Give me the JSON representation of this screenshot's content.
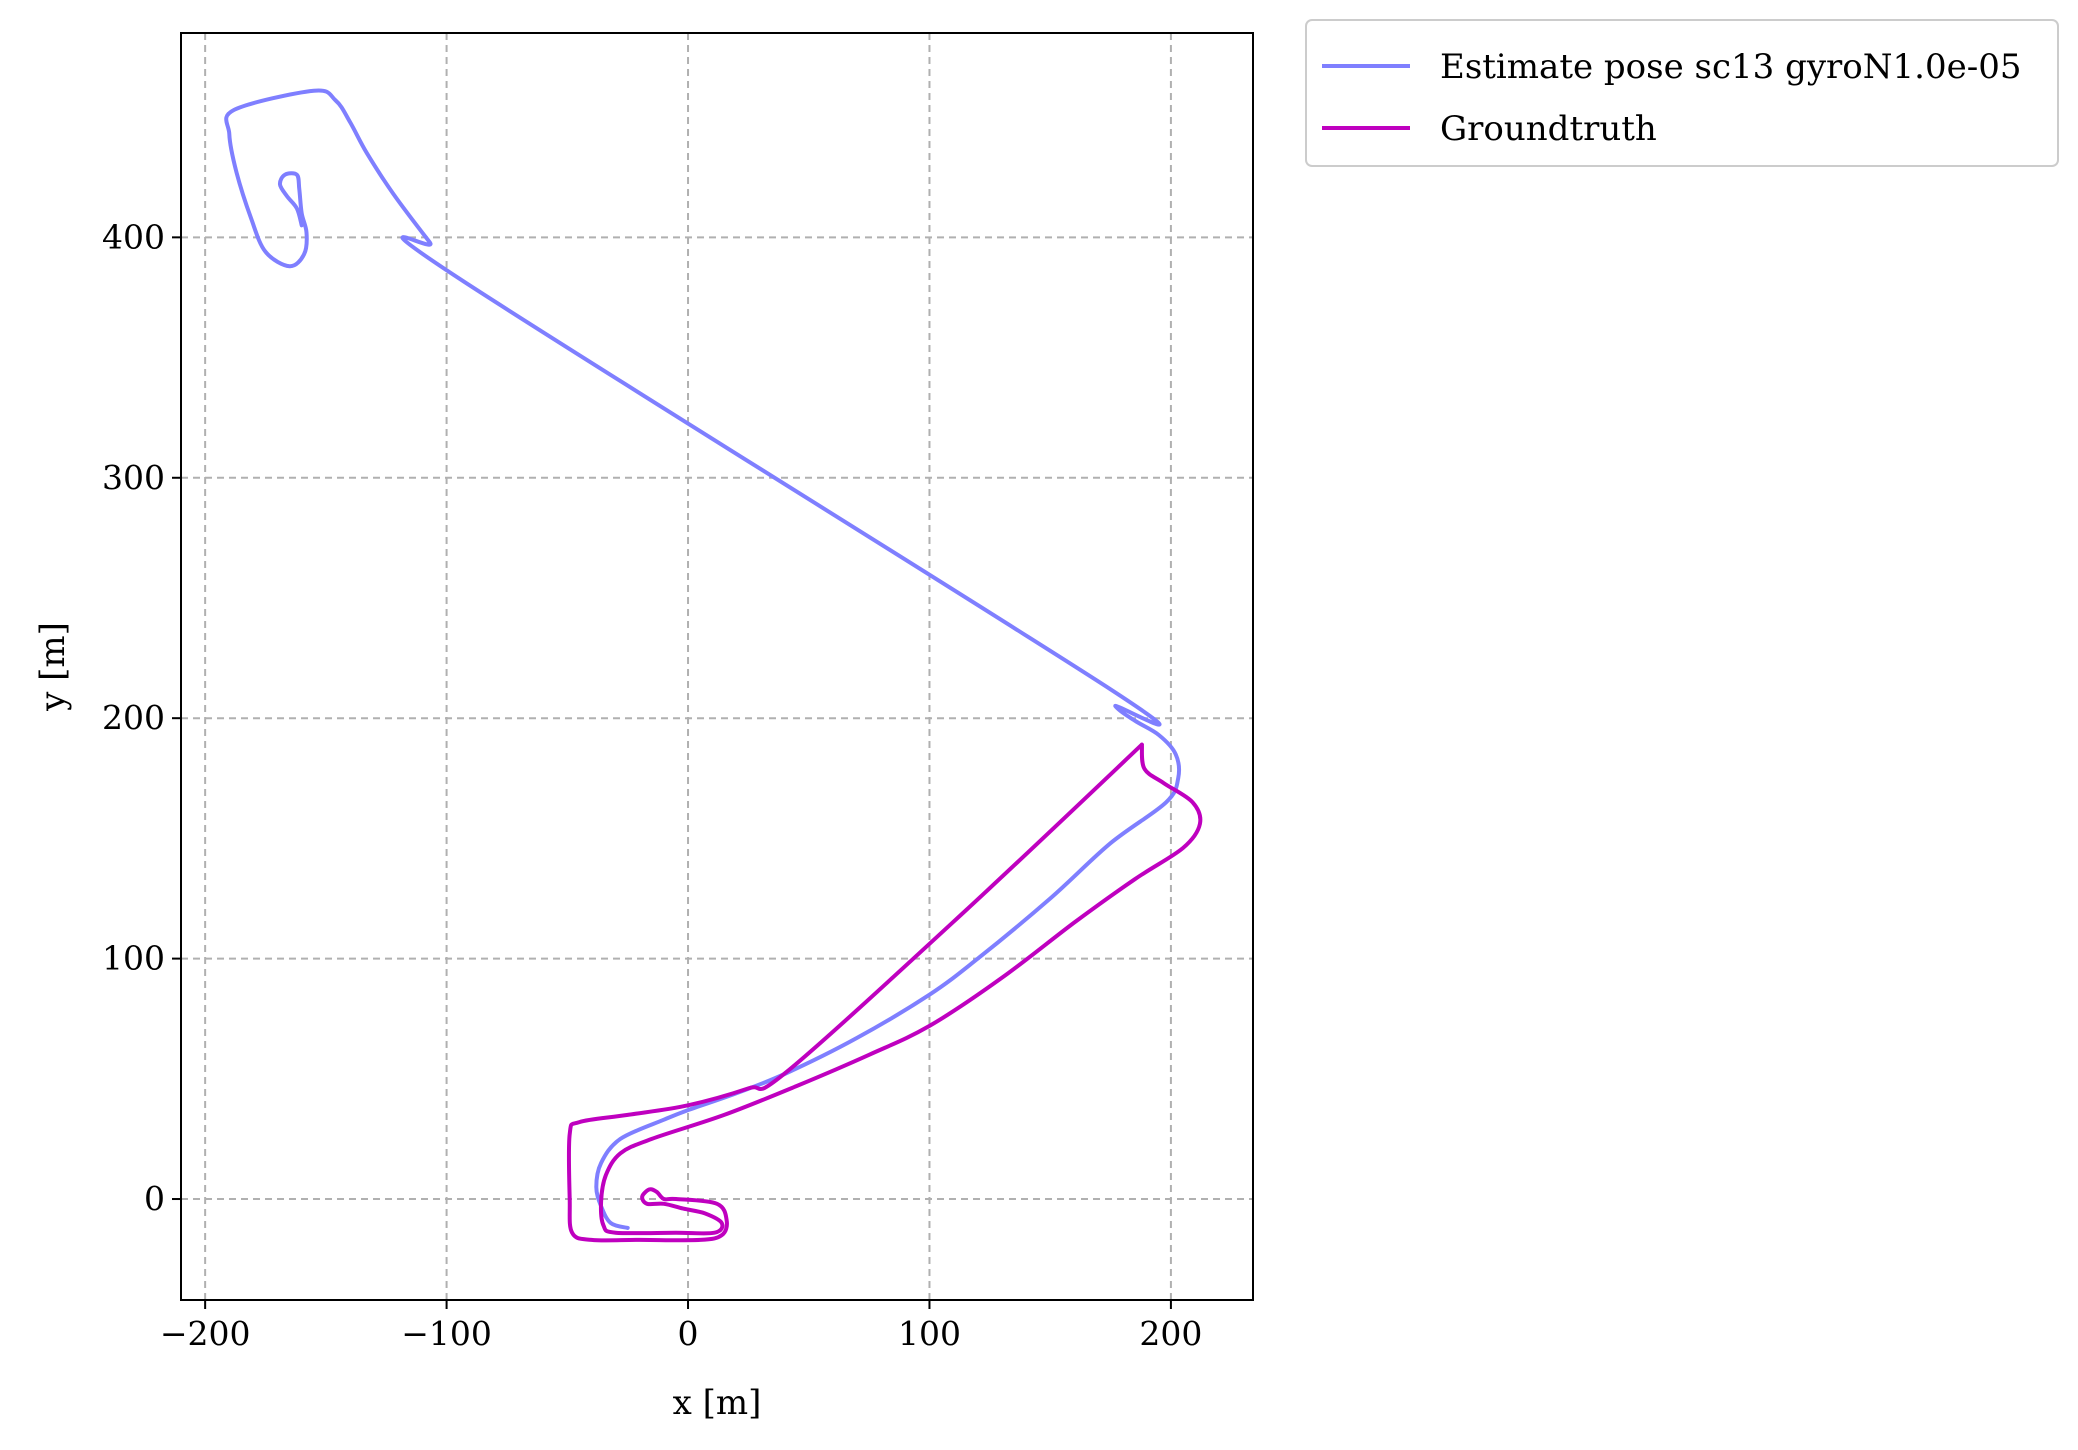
{
  "chart_data": {
    "type": "line",
    "title": "",
    "xlabel": "x [m]",
    "ylabel": "y [m]",
    "xlim": [
      -210,
      234
    ],
    "ylim": [
      -42,
      485
    ],
    "xticks": [
      -200,
      -100,
      0,
      100,
      200
    ],
    "yticks": [
      0,
      100,
      200,
      300,
      400
    ],
    "xtick_labels": [
      "−200",
      "−100",
      "0",
      "100",
      "200"
    ],
    "ytick_labels": [
      "0",
      "100",
      "200",
      "300",
      "400"
    ],
    "grid": true,
    "legend_position": "outside-top-right",
    "series": [
      {
        "name": "Estimate pose sc13 gyroN1.0e-05",
        "color": "#7f7fff",
        "points": [
          [
            -25,
            -12
          ],
          [
            -32,
            -10
          ],
          [
            -36,
            -3
          ],
          [
            -38,
            5
          ],
          [
            -36,
            15
          ],
          [
            -28,
            25
          ],
          [
            -10,
            33
          ],
          [
            0,
            37
          ],
          [
            20,
            44
          ],
          [
            40,
            52
          ],
          [
            70,
            67
          ],
          [
            100,
            85
          ],
          [
            120,
            100
          ],
          [
            150,
            125
          ],
          [
            175,
            148
          ],
          [
            198,
            165
          ],
          [
            203,
            175
          ],
          [
            202,
            185
          ],
          [
            195,
            193
          ],
          [
            185,
            199
          ],
          [
            177,
            205
          ],
          [
            175,
            212
          ],
          [
            -95,
            383
          ],
          [
            -107,
            398
          ],
          [
            -122,
            418
          ],
          [
            -133,
            435
          ],
          [
            -140,
            448
          ],
          [
            -146,
            457
          ],
          [
            -155,
            461
          ],
          [
            -188,
            453
          ],
          [
            -190,
            443
          ],
          [
            -187,
            427
          ],
          [
            -181,
            408
          ],
          [
            -175,
            394
          ],
          [
            -165,
            388
          ],
          [
            -159,
            393
          ],
          [
            -158,
            402
          ],
          [
            -160,
            410
          ],
          [
            -161,
            420
          ],
          [
            -162,
            426
          ],
          [
            -167,
            426
          ],
          [
            -169,
            422
          ],
          [
            -166,
            417
          ],
          [
            -162,
            412
          ],
          [
            -160,
            405
          ]
        ]
      },
      {
        "name": "Groundtruth",
        "color": "#bf00bf",
        "points": [
          [
            188,
            189
          ],
          [
            115,
            120
          ],
          [
            41,
            53
          ],
          [
            25,
            46
          ],
          [
            0,
            39
          ],
          [
            -25,
            35
          ],
          [
            -45,
            32
          ],
          [
            -49,
            27
          ],
          [
            -49,
            0
          ],
          [
            -48,
            -14
          ],
          [
            -40,
            -17
          ],
          [
            -20,
            -17
          ],
          [
            5,
            -17
          ],
          [
            14,
            -15
          ],
          [
            16,
            -9
          ],
          [
            12,
            -2
          ],
          [
            -5,
            0
          ],
          [
            -10,
            0
          ],
          [
            -13,
            3
          ],
          [
            -16,
            4
          ],
          [
            -19,
            1
          ],
          [
            -17,
            -2
          ],
          [
            -10,
            -2
          ],
          [
            -2,
            -4
          ],
          [
            7,
            -6
          ],
          [
            14,
            -10
          ],
          [
            11,
            -14
          ],
          [
            -5,
            -14
          ],
          [
            -30,
            -14
          ],
          [
            -35,
            -11
          ],
          [
            -36,
            -1
          ],
          [
            -34,
            10
          ],
          [
            -28,
            19
          ],
          [
            -15,
            25
          ],
          [
            15,
            35
          ],
          [
            45,
            47
          ],
          [
            75,
            60
          ],
          [
            100,
            72
          ],
          [
            130,
            92
          ],
          [
            160,
            115
          ],
          [
            185,
            133
          ],
          [
            205,
            146
          ],
          [
            212,
            156
          ],
          [
            209,
            165
          ],
          [
            197,
            173
          ],
          [
            189,
            179
          ],
          [
            188,
            189
          ]
        ]
      }
    ]
  }
}
